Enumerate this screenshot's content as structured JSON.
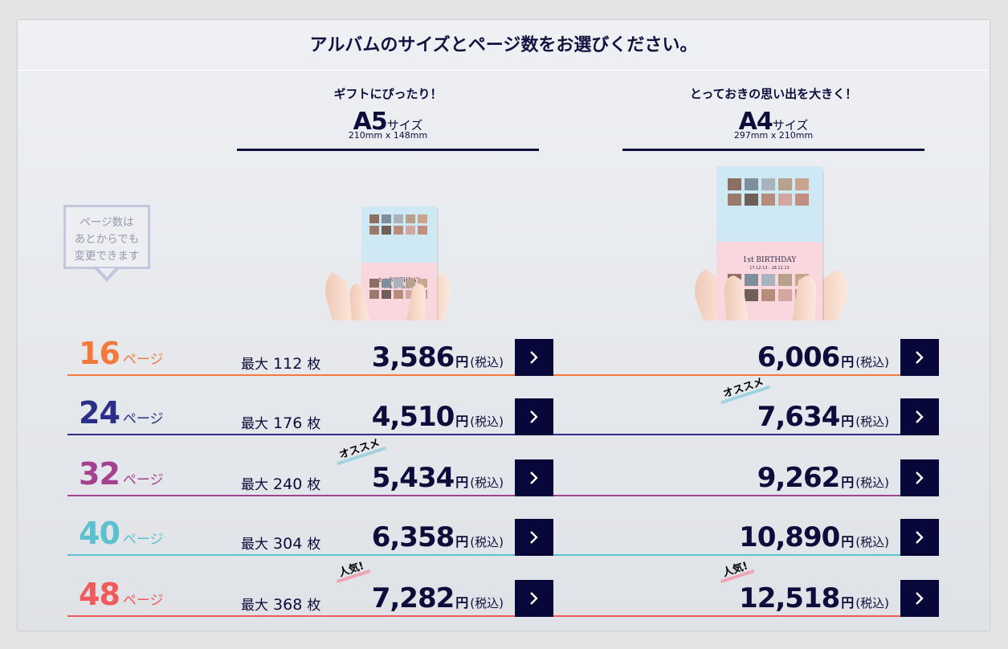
{
  "header": {
    "title": "アルバムのサイズとページ数をお選びください。"
  },
  "sizes": {
    "a5": {
      "tagline": "ギフトにぴったり！",
      "name": "A5",
      "suffix": "サイズ",
      "dimensions": "210mm x 148mm"
    },
    "a4": {
      "tagline": "とっておきの思い出を大きく！",
      "name": "A4",
      "suffix": "サイズ",
      "dimensions": "297mm x 210mm"
    }
  },
  "note": {
    "line1": "ページ数は",
    "line2": "あとからでも",
    "line3": "変更できます"
  },
  "book_cover": {
    "title": "1st BIRTHDAY",
    "subtitle": "17.12.13 - 18.12.13"
  },
  "labels": {
    "page_unit": "ページ",
    "max_prefix": "最大",
    "photo_unit": "枚",
    "yen": "円",
    "tax": "(税込)"
  },
  "badges": {
    "recommend": "オススメ",
    "popular": "人気!"
  },
  "colors": {
    "navy": "#0d0d3b",
    "button": "#07073a",
    "recommend_underline": "#9fd3df",
    "popular_underline": "#f0a5b5"
  },
  "rows": [
    {
      "pages": "16",
      "max_photos": "112",
      "price_a5": "3,586",
      "price_a4": "6,006",
      "color": "#f47a3c"
    },
    {
      "pages": "24",
      "max_photos": "176",
      "price_a5": "4,510",
      "price_a4": "7,634",
      "color": "#2b2f87",
      "badge_a4": "recommend"
    },
    {
      "pages": "32",
      "max_photos": "240",
      "price_a5": "5,434",
      "price_a4": "9,262",
      "color": "#a5428f",
      "badge_a5": "recommend"
    },
    {
      "pages": "40",
      "max_photos": "304",
      "price_a5": "6,358",
      "price_a4": "10,890",
      "color": "#5cc1cf"
    },
    {
      "pages": "48",
      "max_photos": "368",
      "price_a5": "7,282",
      "price_a4": "12,518",
      "color": "#f05a5a",
      "badge_a5": "popular",
      "badge_a4": "popular"
    }
  ]
}
